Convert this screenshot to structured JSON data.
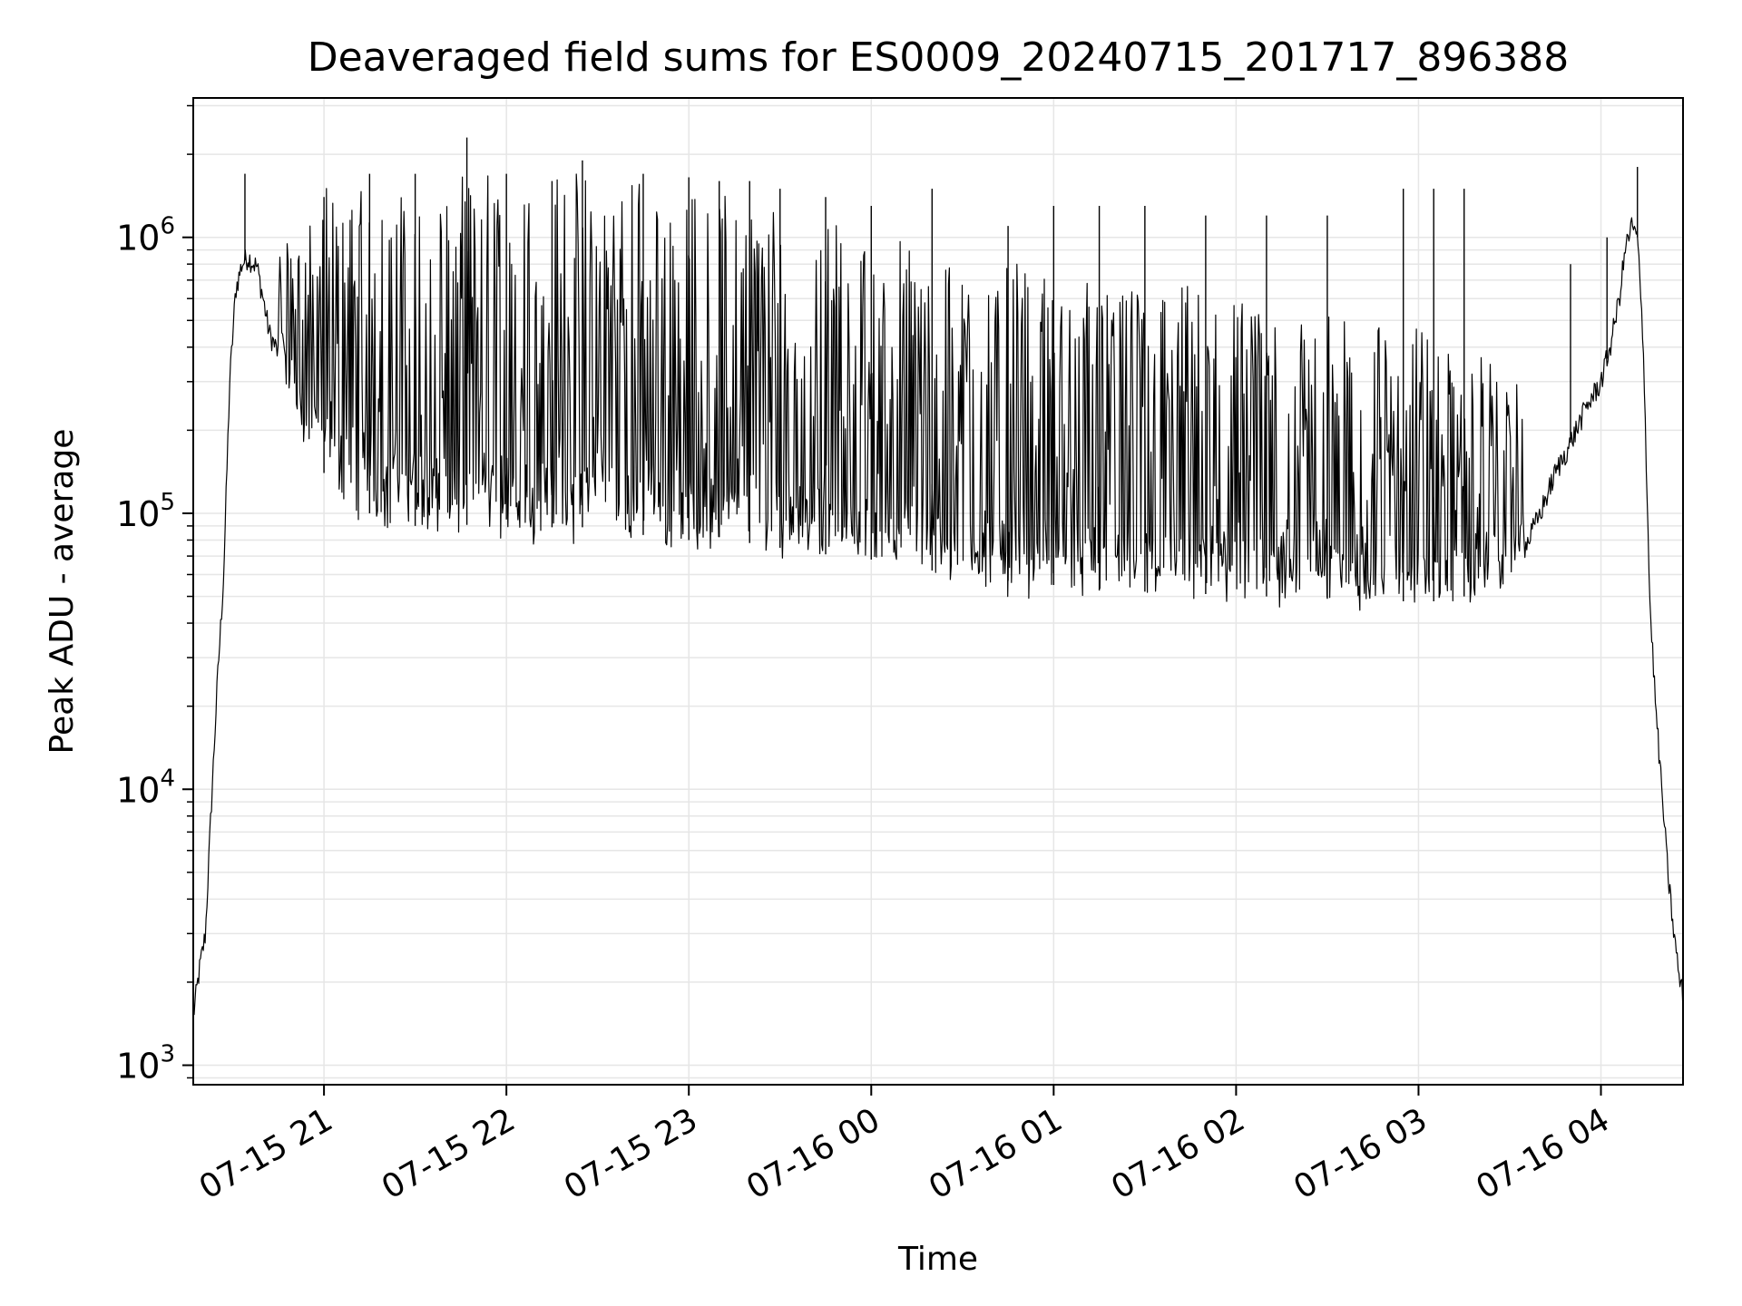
{
  "chart_data": {
    "type": "line",
    "title": "Deaveraged field sums for ES0009_20240715_201717_896388",
    "xlabel": "Time",
    "ylabel": "Peak ADU - average",
    "yscale": "log",
    "ylim": [
      850,
      3200000
    ],
    "xlim": [
      "07-15 20:17",
      "07-16 04:27"
    ],
    "grid": true,
    "x_tick_labels": [
      "07-15 21",
      "07-15 22",
      "07-15 23",
      "07-16 00",
      "07-16 01",
      "07-16 02",
      "07-16 03",
      "07-16 04"
    ],
    "y_tick_labels": [
      {
        "base": "10",
        "exp": "3"
      },
      {
        "base": "10",
        "exp": "4"
      },
      {
        "base": "10",
        "exp": "5"
      },
      {
        "base": "10",
        "exp": "6"
      }
    ],
    "series": [
      {
        "color": "#000000",
        "x": [
          "07-15 20:17",
          "07-15 20:19",
          "07-15 20:21",
          "07-15 20:23",
          "07-15 20:25",
          "07-15 20:27",
          "07-15 20:29",
          "07-15 20:31",
          "07-15 20:33",
          "07-15 20:35",
          "07-15 20:38",
          "07-15 20:40",
          "07-15 20:42",
          "07-15 20:45",
          "07-15 20:48",
          "07-15 20:50",
          "07-15 20:52",
          "07-15 20:54",
          "07-15 20:56",
          "07-15 20:58",
          "07-15 21:00",
          "07-15 21:05",
          "07-15 21:10",
          "07-15 21:15",
          "07-15 21:20",
          "07-15 21:30",
          "07-15 21:40",
          "07-15 21:45",
          "07-15 21:50",
          "07-15 22:00",
          "07-15 22:10",
          "07-15 22:20",
          "07-15 22:30",
          "07-15 22:40",
          "07-15 22:50",
          "07-15 23:00",
          "07-15 23:10",
          "07-15 23:20",
          "07-15 23:30",
          "07-15 23:40",
          "07-15 23:50",
          "07-16 00:00",
          "07-16 00:10",
          "07-16 00:20",
          "07-16 00:30",
          "07-16 00:40",
          "07-16 00:50",
          "07-16 01:00",
          "07-16 01:10",
          "07-16 01:20",
          "07-16 01:30",
          "07-16 01:40",
          "07-16 01:50",
          "07-16 02:00",
          "07-16 02:10",
          "07-16 02:20",
          "07-16 02:30",
          "07-16 02:40",
          "07-16 02:50",
          "07-16 03:00",
          "07-16 03:10",
          "07-16 03:20",
          "07-16 03:30",
          "07-16 03:35",
          "07-16 03:40",
          "07-16 03:45",
          "07-16 03:50",
          "07-16 03:55",
          "07-16 04:00",
          "07-16 04:03",
          "07-16 04:06",
          "07-16 04:08",
          "07-16 04:10",
          "07-16 04:12",
          "07-16 04:14",
          "07-16 04:16",
          "07-16 04:18",
          "07-16 04:20",
          "07-16 04:22",
          "07-16 04:24",
          "07-16 04:26",
          "07-16 04:27"
        ],
        "y": [
          1500,
          2200,
          3000,
          9000,
          25000,
          60000,
          300000,
          650000,
          800000,
          850000,
          780000,
          600000,
          450000,
          380000,
          300000,
          250000,
          200000,
          180000,
          160000,
          150000,
          140000,
          120000,
          110000,
          100000,
          95000,
          90000,
          88000,
          90000,
          92000,
          95000,
          90000,
          88000,
          90000,
          85000,
          82000,
          80000,
          82000,
          78000,
          75000,
          72000,
          70000,
          68000,
          65000,
          62000,
          60000,
          58000,
          56000,
          55000,
          53000,
          52000,
          52000,
          52000,
          51000,
          50000,
          50000,
          50000,
          49000,
          48000,
          48000,
          48000,
          48000,
          52000,
          60000,
          75000,
          100000,
          140000,
          180000,
          240000,
          300000,
          400000,
          600000,
          900000,
          1100000,
          1000000,
          400000,
          50000,
          20000,
          10000,
          5000,
          3000,
          2000,
          1800
        ]
      }
    ],
    "spikes": [
      {
        "x": "07-15 20:34",
        "y": 1700000
      },
      {
        "x": "07-15 21:00",
        "y": 1400000
      },
      {
        "x": "07-15 21:15",
        "y": 1700000
      },
      {
        "x": "07-15 21:30",
        "y": 1700000
      },
      {
        "x": "07-15 21:47",
        "y": 2300000
      },
      {
        "x": "07-15 22:00",
        "y": 1700000
      },
      {
        "x": "07-15 22:15",
        "y": 1600000
      },
      {
        "x": "07-15 22:25",
        "y": 1900000
      },
      {
        "x": "07-15 22:45",
        "y": 1700000
      },
      {
        "x": "07-15 23:00",
        "y": 1650000
      },
      {
        "x": "07-15 23:10",
        "y": 1600000
      },
      {
        "x": "07-15 23:20",
        "y": 1600000
      },
      {
        "x": "07-15 23:30",
        "y": 1500000
      },
      {
        "x": "07-15 23:45",
        "y": 1400000
      },
      {
        "x": "07-16 00:00",
        "y": 1300000
      },
      {
        "x": "07-16 00:20",
        "y": 1500000
      },
      {
        "x": "07-16 00:45",
        "y": 1100000
      },
      {
        "x": "07-16 01:00",
        "y": 1300000
      },
      {
        "x": "07-16 01:15",
        "y": 1300000
      },
      {
        "x": "07-16 01:30",
        "y": 1300000
      },
      {
        "x": "07-16 01:50",
        "y": 1200000
      },
      {
        "x": "07-16 02:10",
        "y": 1200000
      },
      {
        "x": "07-16 02:30",
        "y": 1200000
      },
      {
        "x": "07-16 02:55",
        "y": 1500000
      },
      {
        "x": "07-16 03:05",
        "y": 1500000
      },
      {
        "x": "07-16 03:15",
        "y": 1500000
      },
      {
        "x": "07-16 03:50",
        "y": 800000
      },
      {
        "x": "07-16 04:02",
        "y": 1000000
      },
      {
        "x": "07-16 04:12",
        "y": 1800000
      }
    ]
  }
}
